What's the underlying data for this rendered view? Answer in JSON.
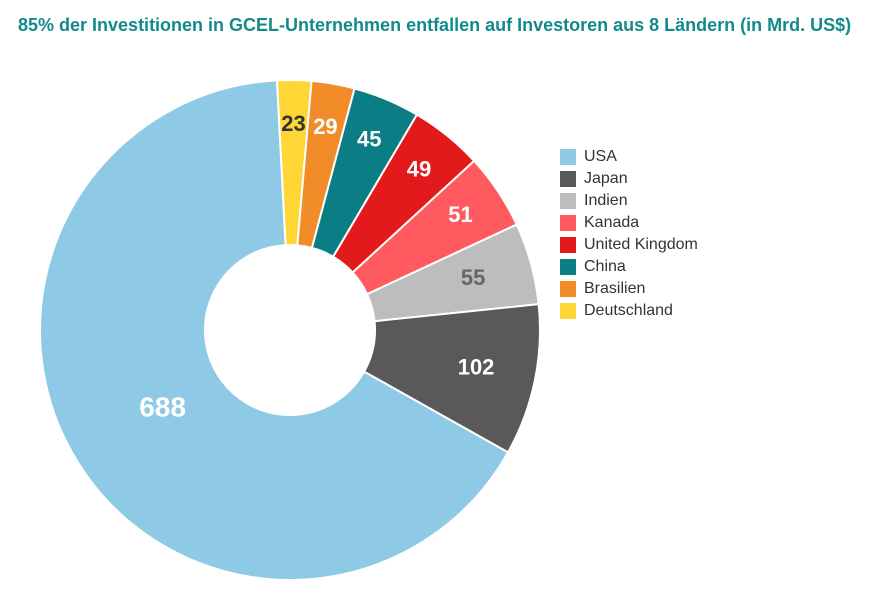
{
  "title": "85% der Investitionen in GCEL-Unternehmen entfallen auf Investoren aus 8 Ländern (in Mrd. US$)",
  "title_color": "#138a8a",
  "title_fontsize": 18,
  "title_fontweight": 700,
  "background_color": "#ffffff",
  "chart": {
    "type": "pie",
    "variant": "donut",
    "start_angle_deg": -93,
    "direction": "clockwise",
    "outer_radius": 250,
    "inner_radius": 85,
    "inner_fill": "#ffffff",
    "label_fontsize": 22,
    "label_fontweight": 700,
    "label_radius": 190,
    "big_label_fontsize": 28,
    "slices": [
      {
        "name": "Deutschland",
        "value": 23,
        "color": "#ffd633",
        "label_color": "#333333"
      },
      {
        "name": "Brasilien",
        "value": 29,
        "color": "#f28c28",
        "label_color": "#ffffff"
      },
      {
        "name": "China",
        "value": 45,
        "color": "#0b7d84",
        "label_color": "#ffffff"
      },
      {
        "name": "United Kingdom",
        "value": 49,
        "color": "#e31a1c",
        "label_color": "#ffffff"
      },
      {
        "name": "Kanada",
        "value": 51,
        "color": "#ff5a5f",
        "label_color": "#ffffff"
      },
      {
        "name": "Indien",
        "value": 55,
        "color": "#bdbdbd",
        "label_color": "#666666"
      },
      {
        "name": "Japan",
        "value": 102,
        "color": "#595959",
        "label_color": "#ffffff"
      },
      {
        "name": "USA",
        "value": 688,
        "color": "#8ecae6",
        "label_color": "#ffffff"
      }
    ],
    "gap_color": "#ffffff",
    "gap_width": 2
  },
  "legend": {
    "fontsize": 16,
    "text_color": "#333333",
    "swatch_size": 16,
    "order": [
      "USA",
      "Japan",
      "Indien",
      "Kanada",
      "United Kingdom",
      "China",
      "Brasilien",
      "Deutschland"
    ]
  }
}
